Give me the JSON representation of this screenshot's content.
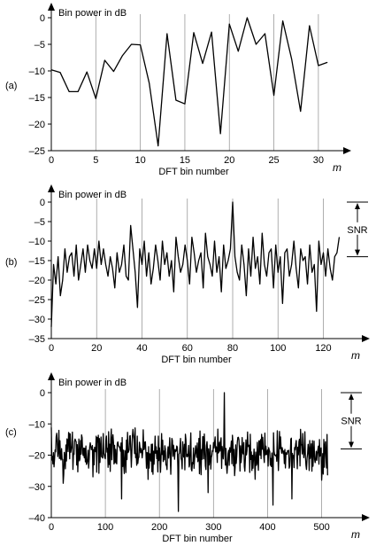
{
  "chart_data": [
    {
      "type": "line",
      "panel_label": "(a)",
      "title": "Bin power in dB",
      "xlabel": "DFT bin number",
      "x_axis_symbol": "m",
      "xlim": [
        0,
        32
      ],
      "ylim": [
        -25,
        0
      ],
      "x_ticks": [
        0,
        5,
        10,
        15,
        20,
        25,
        30
      ],
      "y_ticks": [
        0,
        -5,
        -10,
        -15,
        -20,
        -25
      ],
      "grid": "vertical",
      "series": [
        {
          "x": [
            0,
            1,
            2,
            3,
            4,
            5,
            6,
            7,
            8,
            9,
            10,
            11,
            12,
            13,
            14,
            15,
            16,
            17,
            18,
            19,
            20,
            21,
            22,
            23,
            24,
            25,
            26,
            27,
            28,
            29,
            30,
            31
          ],
          "values": [
            -9.8,
            -10.3,
            -13.9,
            -13.9,
            -10.2,
            -15.2,
            -8.0,
            -10.1,
            -7.1,
            -5.0,
            -5.1,
            -12.3,
            -24.1,
            -3.0,
            -15.5,
            -16.2,
            -2.8,
            -8.6,
            -2.7,
            -21.8,
            -1.2,
            -6.3,
            0,
            -5.0,
            -3.0,
            -14.6,
            -0.6,
            -7.8,
            -17.6,
            -1.5,
            -9.0,
            -8.4
          ]
        }
      ]
    },
    {
      "type": "line",
      "panel_label": "(b)",
      "title": "Bin power in dB",
      "xlabel": "DFT bin number",
      "x_axis_symbol": "m",
      "xlim": [
        0,
        128
      ],
      "ylim": [
        -35,
        0
      ],
      "x_ticks": [
        0,
        20,
        40,
        60,
        80,
        100,
        120
      ],
      "y_ticks": [
        0,
        -5,
        -10,
        -15,
        -20,
        -25,
        -30,
        -35
      ],
      "grid": "vertical",
      "annotation": "SNR",
      "snr_range": [
        0,
        -14
      ],
      "series": [
        {
          "values": [
            -32,
            -16,
            -21,
            -14,
            -24,
            -20,
            -12,
            -18,
            -14,
            -13,
            -19,
            -11,
            -20,
            -16,
            -12,
            -18,
            -11,
            -15,
            -17,
            -12,
            -17,
            -10,
            -16,
            -12,
            -16,
            -19,
            -14,
            -17,
            -22,
            -13,
            -18,
            -16,
            -11,
            -19,
            -20,
            -6,
            -12,
            -18,
            -27,
            -12,
            -16,
            -10,
            -19,
            -13,
            -21,
            -17,
            -11,
            -15,
            -20,
            -10,
            -16,
            -13,
            -19,
            -15,
            -23,
            -9,
            -14,
            -18,
            -16,
            -11,
            -15,
            -21,
            -9,
            -13,
            -18,
            -15,
            -13,
            -22,
            -8,
            -14,
            -16,
            -19,
            -10,
            -18,
            -14,
            -23,
            -11,
            -17,
            -15,
            -12,
            0,
            -14,
            -18,
            -20,
            -11,
            -16,
            -24,
            -12,
            -19,
            -9,
            -17,
            -14,
            -21,
            -8,
            -16,
            -19,
            -13,
            -12,
            -22,
            -11,
            -18,
            -14,
            -26,
            -13,
            -12,
            -19,
            -16,
            -10,
            -17,
            -22,
            -12,
            -15,
            -14,
            -21,
            -11,
            -18,
            -16,
            -28,
            -10,
            -16,
            -13,
            -19,
            -12,
            -17,
            -20,
            -14,
            -13,
            -9
          ]
        }
      ]
    },
    {
      "type": "line",
      "panel_label": "(c)",
      "title": "Bin power in dB",
      "xlabel": "DFT bin number",
      "x_axis_symbol": "m",
      "xlim": [
        0,
        540
      ],
      "ylim": [
        -40,
        0
      ],
      "x_ticks": [
        0,
        100,
        200,
        300,
        400,
        500
      ],
      "y_ticks": [
        0,
        -10,
        -20,
        -30,
        -40
      ],
      "grid": "vertical",
      "annotation": "SNR",
      "snr_range": [
        0,
        -18
      ],
      "noise": {
        "count": 512,
        "base_level": -19,
        "spread": 7,
        "seed": 73
      },
      "spikes": [
        {
          "x": 320,
          "value": 0
        },
        {
          "x": 235,
          "value": -38
        },
        {
          "x": 130,
          "value": -34
        },
        {
          "x": 410,
          "value": -36
        },
        {
          "x": 445,
          "value": -34
        },
        {
          "x": 22,
          "value": -29
        },
        {
          "x": 290,
          "value": -32
        },
        {
          "x": 500,
          "value": -28
        }
      ]
    }
  ]
}
